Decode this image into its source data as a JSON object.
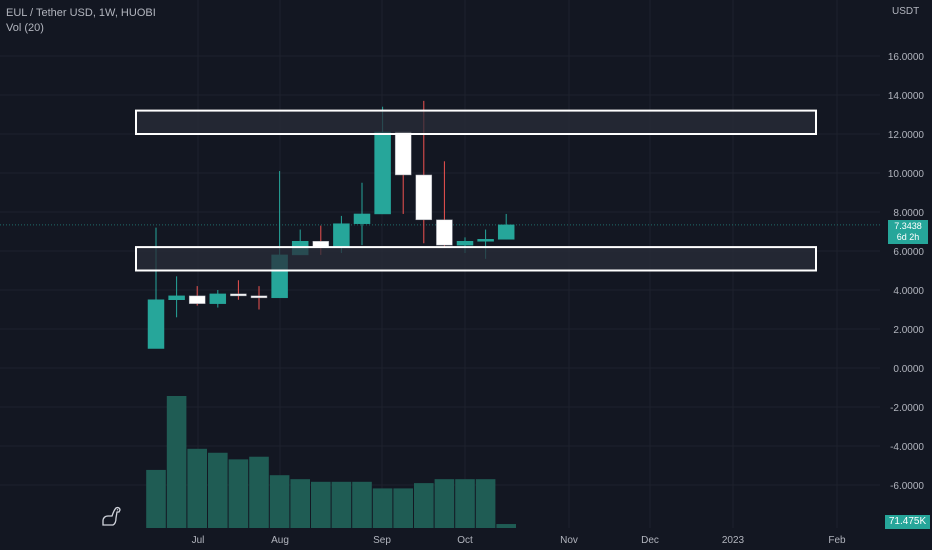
{
  "legend": {
    "symbol": "EUL / Tether USD, 1W, HUOBI",
    "volume_label": "Vol (20)"
  },
  "currency": "USDT",
  "last_price": "7.3438",
  "countdown": "6d 2h",
  "last_volume": "71.475K",
  "colors": {
    "background": "#131722",
    "up": "#26a69a",
    "down": "#ffffff",
    "wick_up": "#26a69a",
    "wick_down": "#ef5350",
    "volume": "#1f5c54",
    "zone_border": "#ffffff",
    "zone_fill": "#2a2e39"
  },
  "chart_data": {
    "type": "candlestick",
    "y_axis_ticks": [
      "16.0000",
      "14.0000",
      "12.0000",
      "10.0000",
      "8.0000",
      "6.0000",
      "4.0000",
      "2.0000",
      "0.0000",
      "-2.0000",
      "-4.0000",
      "-6.0000"
    ],
    "y_tick_values": [
      16,
      14,
      12,
      10,
      8,
      6,
      4,
      2,
      0,
      -2,
      -4,
      -6
    ],
    "x_axis_ticks": [
      "Jul",
      "Aug",
      "Sep",
      "Oct",
      "Nov",
      "Dec",
      "2023",
      "Feb"
    ],
    "ylim": [
      -8,
      17
    ],
    "candles": [
      {
        "o": 1.0,
        "h": 7.2,
        "l": 1.0,
        "c": 3.5
      },
      {
        "o": 3.5,
        "h": 4.7,
        "l": 2.6,
        "c": 3.7
      },
      {
        "o": 3.7,
        "h": 4.2,
        "l": 3.2,
        "c": 3.3
      },
      {
        "o": 3.3,
        "h": 4.0,
        "l": 3.1,
        "c": 3.8
      },
      {
        "o": 3.8,
        "h": 4.5,
        "l": 3.5,
        "c": 3.7
      },
      {
        "o": 3.7,
        "h": 4.2,
        "l": 3.0,
        "c": 3.6
      },
      {
        "o": 3.6,
        "h": 10.1,
        "l": 3.6,
        "c": 5.8
      },
      {
        "o": 5.8,
        "h": 7.1,
        "l": 5.8,
        "c": 6.5
      },
      {
        "o": 6.5,
        "h": 7.3,
        "l": 5.8,
        "c": 6.2
      },
      {
        "o": 6.2,
        "h": 7.8,
        "l": 5.9,
        "c": 7.4
      },
      {
        "o": 7.4,
        "h": 9.5,
        "l": 6.3,
        "c": 7.9
      },
      {
        "o": 7.9,
        "h": 13.4,
        "l": 7.9,
        "c": 12.1
      },
      {
        "o": 12.1,
        "h": 12.1,
        "l": 7.9,
        "c": 9.9
      },
      {
        "o": 9.9,
        "h": 13.7,
        "l": 6.4,
        "c": 7.6
      },
      {
        "o": 7.6,
        "h": 10.6,
        "l": 6.2,
        "c": 6.3
      },
      {
        "o": 6.3,
        "h": 6.7,
        "l": 5.9,
        "c": 6.5
      },
      {
        "o": 6.5,
        "h": 7.1,
        "l": 5.6,
        "c": 6.6
      },
      {
        "o": 6.6,
        "h": 7.9,
        "l": 6.6,
        "c": 7.34
      }
    ],
    "volumes": [
      44,
      100,
      60,
      57,
      52,
      54,
      40,
      37,
      35,
      35,
      35,
      30,
      30,
      34,
      37,
      37,
      37,
      3
    ],
    "zones": [
      {
        "top": 13.2,
        "bottom": 12.0
      },
      {
        "top": 6.2,
        "bottom": 5.0
      }
    ]
  }
}
